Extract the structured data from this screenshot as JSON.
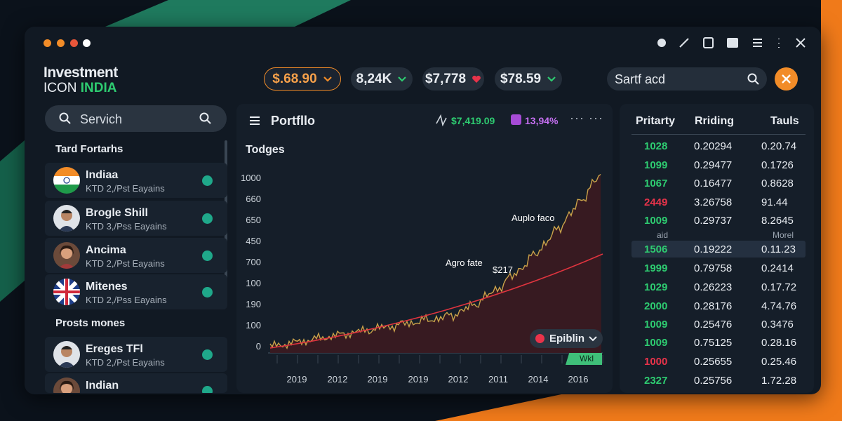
{
  "brand": {
    "line1": "Investment",
    "line2a": "ICON",
    "line2b": "INDIA"
  },
  "tickers": [
    {
      "label": "$.68.90",
      "icon": "chevron",
      "color": "#f28c28"
    },
    {
      "label": "8,24K",
      "icon": "chevron",
      "color": "#2ecc71"
    },
    {
      "label": "$7,778",
      "icon": "heart",
      "color": "#e8334a"
    },
    {
      "label": "$78.59",
      "icon": "chevron",
      "color": "#2ecc71"
    }
  ],
  "search": {
    "placeholder": "Sartf acd"
  },
  "sidebar": {
    "search": "Servich",
    "sections": [
      {
        "title": "Tard Fortarhs",
        "items": [
          {
            "name": "Indiaa",
            "sub": "KTD 2,/Pst Eayains",
            "avatar": "flag-in"
          },
          {
            "name": "Brogle Shill",
            "sub": "KTD 3,/Pss Eayains",
            "avatar": "person"
          },
          {
            "name": "Ancima",
            "sub": "KTD 2,/Pst Eayains",
            "avatar": "person2"
          },
          {
            "name": "Mitenes",
            "sub": "KTD 2,/Pss Eayains",
            "avatar": "flag-uk"
          }
        ]
      },
      {
        "title": "Prosts mones",
        "items": [
          {
            "name": "Ereges TFl",
            "sub": "KTD 2,/Pst Eayains",
            "avatar": "person"
          },
          {
            "name": "Indian",
            "sub": "",
            "avatar": "person2"
          }
        ]
      }
    ]
  },
  "portfolio": {
    "title": "Portfllo",
    "value": "$7,419.09",
    "change": "13,94%",
    "chart": {
      "title": "Todges",
      "y_labels": [
        "1000",
        "660",
        "650",
        "450",
        "700",
        "100",
        "190",
        "100",
        "0"
      ],
      "x_labels": [
        "2019",
        "2012",
        "2019",
        "2019",
        "2012",
        "2011",
        "2014",
        "2016"
      ],
      "annotations": [
        "Agro fate",
        "$217",
        "Auplo faco"
      ],
      "dropdown": "Epiblin",
      "tag": "Wkl"
    }
  },
  "table": {
    "headers": [
      "Pritarty",
      "Rriding",
      "Tauls"
    ],
    "rows": [
      {
        "cells": [
          "1028",
          "0.20294",
          "0.20.74"
        ],
        "color": "#2ecc71"
      },
      {
        "cells": [
          "1099",
          "0.29477",
          "0.1726"
        ],
        "color": "#2ecc71"
      },
      {
        "cells": [
          "1067",
          "0.16477",
          "0.8628"
        ],
        "color": "#2ecc71"
      },
      {
        "cells": [
          "2449",
          "3.26758",
          "91.44"
        ],
        "color": "#e8334a"
      },
      {
        "cells": [
          "1009",
          "0.29737",
          "8.2645"
        ],
        "color": "#2ecc71"
      },
      {
        "cells": [
          "aid",
          "",
          "Morel"
        ],
        "color": "#9aa4b0",
        "small": true
      },
      {
        "cells": [
          "1506",
          "0.19222",
          "0.11.23"
        ],
        "color": "#2ecc71",
        "highlight": true
      },
      {
        "cells": [
          "1999",
          "0.79758",
          "0.2414"
        ],
        "color": "#2ecc71"
      },
      {
        "cells": [
          "1029",
          "0.26223",
          "0.17.72"
        ],
        "color": "#2ecc71"
      },
      {
        "cells": [
          "2000",
          "0.28176",
          "4.74.76"
        ],
        "color": "#2ecc71"
      },
      {
        "cells": [
          "1009",
          "0.25476",
          "0.3476"
        ],
        "color": "#2ecc71"
      },
      {
        "cells": [
          "1009",
          "0.75125",
          "0.28.16"
        ],
        "color": "#2ecc71"
      },
      {
        "cells": [
          "1000",
          "0.25655",
          "0.25.46"
        ],
        "color": "#e8334a"
      },
      {
        "cells": [
          "2327",
          "0.25756",
          "1.72.28"
        ],
        "color": "#2ecc71"
      }
    ]
  }
}
